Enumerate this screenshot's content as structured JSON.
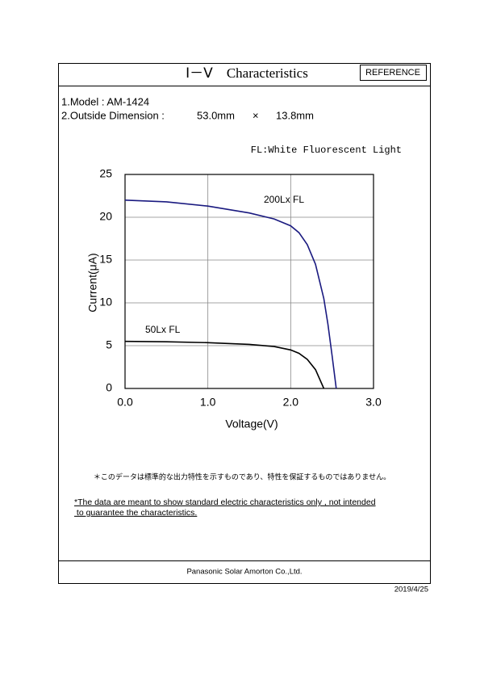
{
  "header": {
    "title": "Ⅰ－Ⅴ　Characteristics",
    "badge": "REFERENCE"
  },
  "specs": [
    "1.Model : AM-1424",
    "2.Outside Dimension :",
    "53.0mm",
    "×",
    "13.8mm"
  ],
  "note": "FL:White Fluorescent Light",
  "chart_data": {
    "type": "line",
    "x_label": "Voltage(V)",
    "y_label": "Current(μA)",
    "xlim": [
      0,
      3
    ],
    "ylim": [
      0,
      25
    ],
    "xticks": [
      {
        "value": 0,
        "label": "0.0"
      },
      {
        "value": 1,
        "label": "1.0"
      },
      {
        "value": 2,
        "label": "2.0"
      },
      {
        "value": 3,
        "label": "3.0"
      }
    ],
    "yticks": [
      0,
      5,
      10,
      15,
      20,
      25
    ],
    "grid": true,
    "series": [
      {
        "name": "200Lx FL",
        "color": "#1a1a80",
        "x": [
          0,
          0.5,
          1.0,
          1.5,
          1.8,
          2.0,
          2.1,
          2.2,
          2.3,
          2.4,
          2.45,
          2.5,
          2.55
        ],
        "values": [
          22,
          21.8,
          21.3,
          20.5,
          19.8,
          19.0,
          18.2,
          16.8,
          14.5,
          10.5,
          7.5,
          3.8,
          0
        ]
      },
      {
        "name": "50Lx  FL",
        "color": "#000000",
        "x": [
          0,
          0.5,
          1.0,
          1.5,
          1.8,
          2.0,
          2.1,
          2.2,
          2.3,
          2.4
        ],
        "values": [
          5.5,
          5.45,
          5.35,
          5.15,
          4.9,
          4.5,
          4.1,
          3.4,
          2.2,
          0
        ]
      }
    ]
  },
  "disclaimer_ja": "＊このデータは標準的な出力特性を示すものであり、特性を保証するものではありません。",
  "disclaimer_en": [
    "*The data are meant to show standard electric characteristics only , not  intended",
    " to guarantee the characteristics."
  ],
  "footer": {
    "company": "Panasonic Solar Amorton Co.,Ltd.",
    "date": "2019/4/25"
  }
}
